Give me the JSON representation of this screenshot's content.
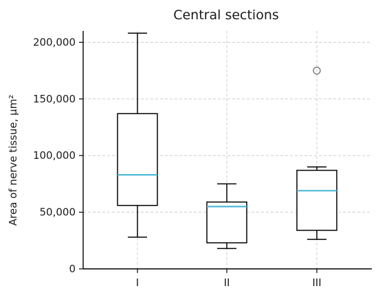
{
  "chart_data": {
    "type": "box",
    "title": "Central sections",
    "xlabel": "",
    "ylabel": "Area of nerve tissue, µm²",
    "ylim": [
      0,
      210000
    ],
    "yticks": [
      0,
      50000,
      100000,
      150000,
      200000
    ],
    "ytick_labels": [
      "0",
      "50,000",
      "100,000",
      "150,000",
      "200,000"
    ],
    "grid": true,
    "categories": [
      "I",
      "II",
      "III"
    ],
    "boxes": [
      {
        "label": "I",
        "whisker_low": 28000,
        "q1": 56000,
        "median": 83000,
        "q3": 137000,
        "whisker_high": 208000,
        "outliers": []
      },
      {
        "label": "II",
        "whisker_low": 18000,
        "q1": 23000,
        "median": 55000,
        "q3": 59000,
        "whisker_high": 75000,
        "outliers": []
      },
      {
        "label": "III",
        "whisker_low": 26000,
        "q1": 34000,
        "median": 69000,
        "q3": 87000,
        "whisker_high": 90000,
        "outliers": [
          175000
        ]
      }
    ],
    "colors": {
      "median": "#4db8d4",
      "outlier": "#777777",
      "box": "#000000"
    }
  }
}
